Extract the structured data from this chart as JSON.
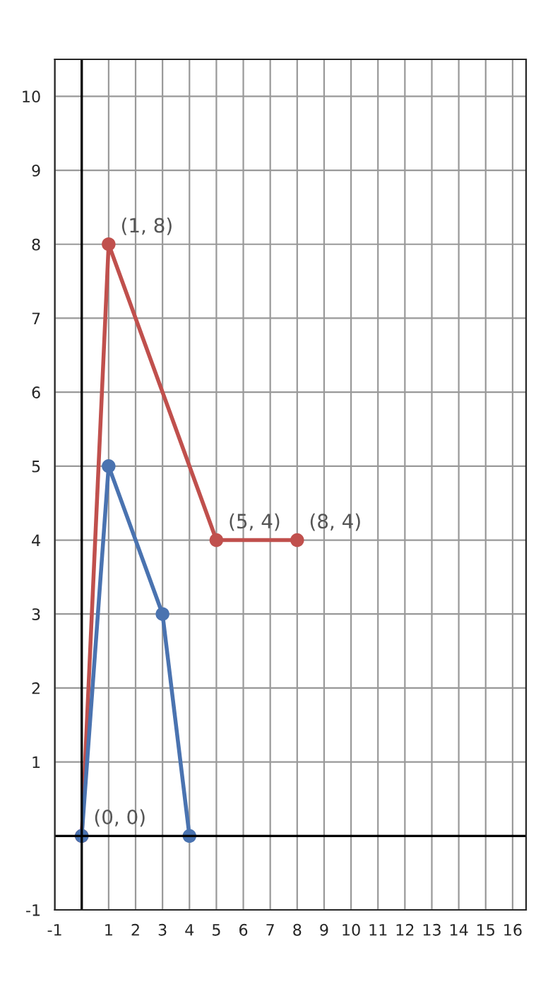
{
  "chart_data": {
    "type": "line",
    "x": [
      0,
      1,
      5,
      8
    ],
    "series": [
      {
        "color": "#c0504d",
        "values": [
          0,
          8,
          4,
          4
        ]
      },
      {
        "color": "#4a73b0",
        "x": [
          0,
          1,
          3,
          4
        ],
        "values": [
          0,
          5,
          3,
          0
        ]
      }
    ],
    "xlim": [
      -1,
      16.5
    ],
    "ylim": [
      -1,
      10.5
    ],
    "xticks": [
      -1,
      1,
      2,
      3,
      4,
      5,
      6,
      7,
      8,
      9,
      10,
      11,
      12,
      13,
      14,
      15,
      16
    ],
    "yticks": [
      -1,
      1,
      2,
      3,
      4,
      5,
      6,
      7,
      8,
      9,
      10
    ],
    "grid": true,
    "marker": "circle",
    "line_style": "solid",
    "annotations": [
      {
        "text": "(0, 0)",
        "x": 0,
        "y": 0
      },
      {
        "text": "(1, 8)",
        "x": 1,
        "y": 8
      },
      {
        "text": "(5, 4)",
        "x": 5,
        "y": 4
      },
      {
        "text": "(8, 4)",
        "x": 8,
        "y": 4
      }
    ]
  }
}
